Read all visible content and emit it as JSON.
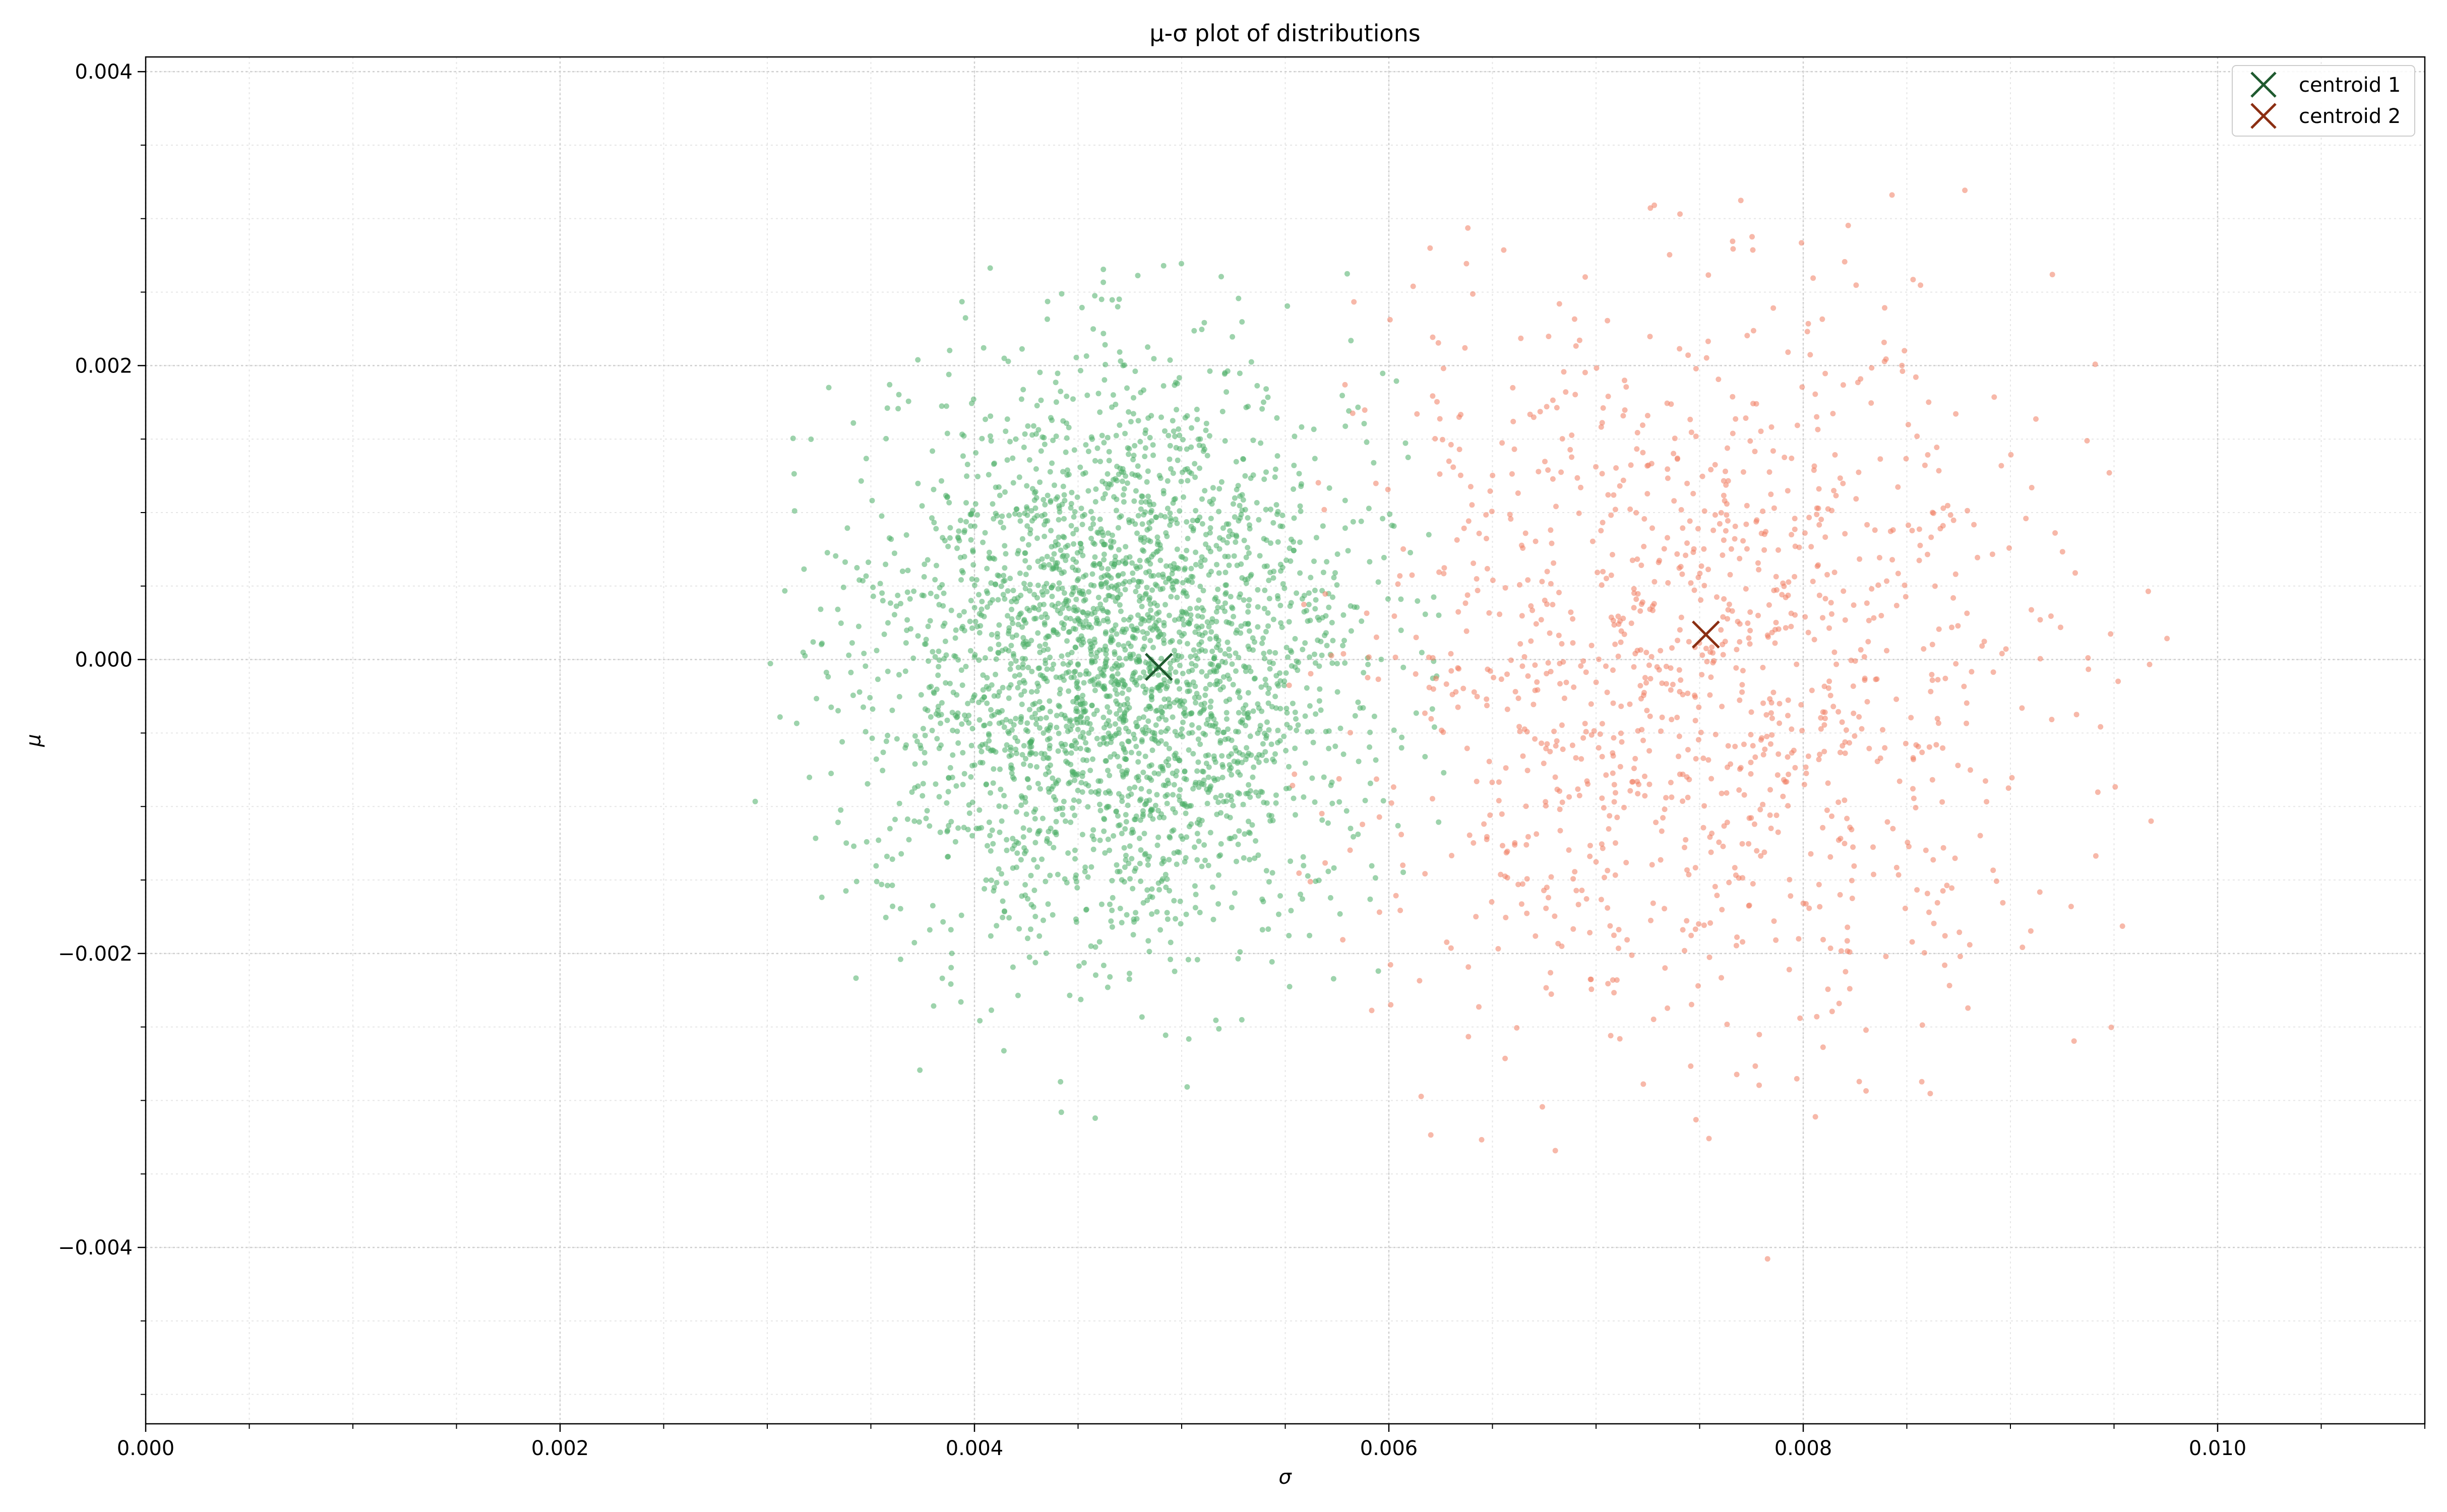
{
  "chart_data": {
    "type": "scatter",
    "title": "μ-σ plot of distributions",
    "xlabel": "σ",
    "ylabel": "μ",
    "xlim": [
      0.0,
      0.011
    ],
    "ylim": [
      -0.0052,
      0.0041
    ],
    "xticks": [
      0.0,
      0.002,
      0.004,
      0.006,
      0.008,
      0.01
    ],
    "xtick_labels": [
      "0.000",
      "0.002",
      "0.004",
      "0.006",
      "0.008",
      "0.010"
    ],
    "yticks": [
      0.004,
      0.002,
      0.0,
      -0.002,
      -0.004
    ],
    "ytick_labels": [
      "0.004",
      "0.002",
      "0.000",
      "−0.002",
      "−0.004"
    ],
    "grid": true,
    "legend_position": "top-right",
    "series": [
      {
        "cluster": 1,
        "color": "#4caf68",
        "count": 3000,
        "approx_center": [
          0.0047,
          0.0
        ],
        "approx_sigma": [
          0.00058,
          0.00095
        ],
        "x_range": [
          0.0029,
          0.0063
        ],
        "y_range": [
          -0.0033,
          0.0028
        ]
      },
      {
        "cluster": 2,
        "color": "#f07d62",
        "count": 1200,
        "approx_center": [
          0.0075,
          0.0
        ],
        "approx_sigma": [
          0.00085,
          0.0012
        ],
        "x_range": [
          0.0055,
          0.01
        ],
        "y_range": [
          -0.0044,
          0.0033
        ]
      }
    ],
    "centroids": [
      {
        "name": "centroid 1",
        "x": 0.00489,
        "y": -5e-05,
        "color": "#1f5a2f"
      },
      {
        "name": "centroid 2",
        "x": 0.00753,
        "y": 0.00017,
        "color": "#8b2e12"
      }
    ]
  }
}
